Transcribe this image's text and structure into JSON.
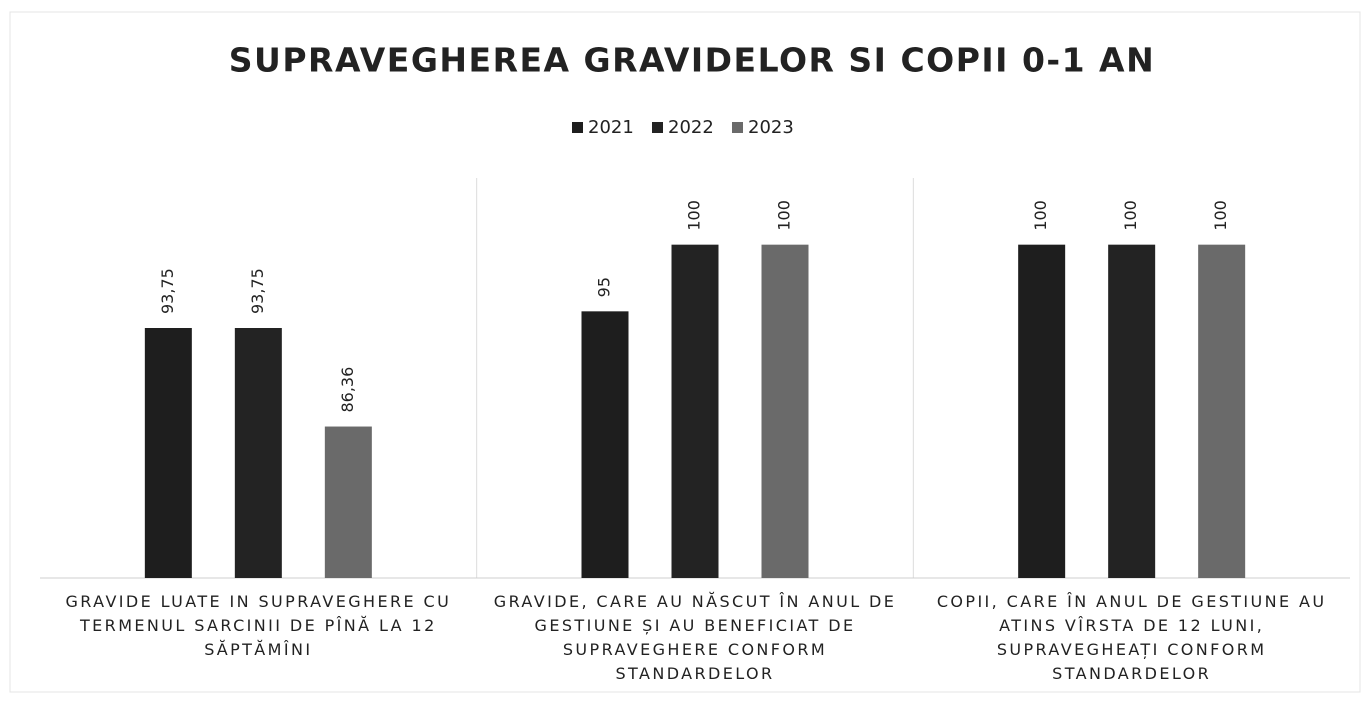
{
  "chart_data": {
    "type": "bar",
    "title": "SUPRAVEGHEREA GRAVIDELOR SI COPII 0-1 AN",
    "categories": [
      "GRAVIDE LUATE  IN SUPRAVEGHERE CU TERMENUL SARCINII DE PÎNĂ LA 12 SĂPTĂMÎNI",
      "GRAVIDE, CARE AU NĂSCUT ÎN ANUL DE GESTIUNE  ȘI AU  BENEFICIAT DE SUPRAVEGHERE CONFORM STANDARDELOR",
      "COPII, CARE ÎN ANUL DE GESTIUNE AU ATINS VÎRSTA DE 12 LUNI, SUPRAVEGHEAȚI CONFORM STANDARDELOR"
    ],
    "series": [
      {
        "name": "2021",
        "color": "#1e1e1e",
        "values": [
          93.75,
          95,
          100
        ],
        "value_labels": [
          "93,75",
          "95",
          "100"
        ]
      },
      {
        "name": "2022",
        "color": "#232323",
        "values": [
          93.75,
          100,
          100
        ],
        "value_labels": [
          "93,75",
          "100",
          "100"
        ]
      },
      {
        "name": "2023",
        "color": "#6a6a6a",
        "values": [
          86.36,
          100,
          100
        ],
        "value_labels": [
          "86,36",
          "100",
          "100"
        ]
      }
    ],
    "ylim": [
      75,
      105
    ],
    "legend": "top"
  }
}
